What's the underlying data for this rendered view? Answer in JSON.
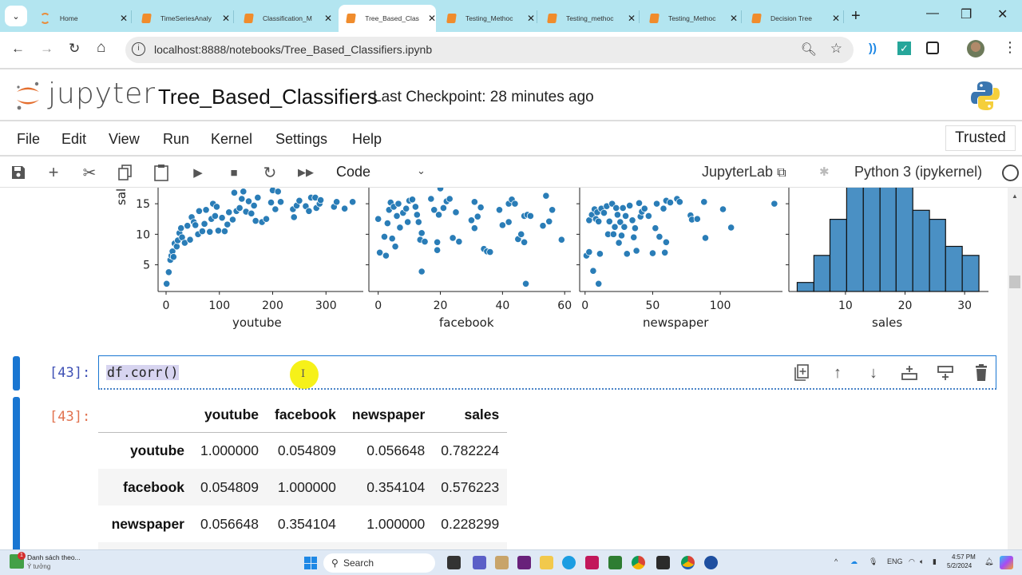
{
  "browser": {
    "tabs": [
      {
        "label": "Home",
        "icon": "jupyter-home-icon",
        "active": false
      },
      {
        "label": "TimeSeriesAnaly",
        "icon": "notebook-icon",
        "active": false
      },
      {
        "label": "Classification_M",
        "icon": "notebook-icon",
        "active": false
      },
      {
        "label": "Tree_Based_Clas",
        "icon": "notebook-icon",
        "active": true
      },
      {
        "label": "Testing_Methoc",
        "icon": "notebook-icon",
        "active": false
      },
      {
        "label": "Testing_methoc",
        "icon": "notebook-icon",
        "active": false
      },
      {
        "label": "Testing_Methoc",
        "icon": "notebook-icon",
        "active": false
      },
      {
        "label": "Decision Tree",
        "icon": "notebook-icon",
        "active": false
      }
    ],
    "tab_close": "✕",
    "new_tab": "+",
    "window": {
      "minimize": "—",
      "restore": "❐",
      "close": "✕"
    },
    "nav": {
      "back": "←",
      "forward": "→",
      "reload": "↻",
      "home": "⌂"
    },
    "url": "localhost:8888/notebooks/Tree_Based_Classifiers.ipynb",
    "url_info_icon": "i",
    "menu": "⋮"
  },
  "jupyter": {
    "wordmark": "jupyter",
    "notebook_title": "Tree_Based_Classifiers",
    "checkpoint": "Last Checkpoint: 28 minutes ago",
    "menus": [
      "File",
      "Edit",
      "View",
      "Run",
      "Kernel",
      "Settings",
      "Help"
    ],
    "trusted": "Trusted",
    "toolbar": {
      "cell_type": "Code",
      "jupyterlab_link": "JupyterLab",
      "kernel": "Python 3 (ipykernel)"
    }
  },
  "chart_data": [
    {
      "type": "scatter",
      "title": "",
      "xlabel": "youtube",
      "ylabel": "sales",
      "xticks": [
        0,
        100,
        200,
        300
      ],
      "yticks": [
        5,
        10,
        15
      ],
      "xlim": [
        -15,
        370
      ],
      "ylim_visible": [
        0.5,
        17.5
      ],
      "points": [
        [
          1,
          1.9
        ],
        [
          5,
          3.8
        ],
        [
          8,
          5.8
        ],
        [
          10,
          6.5
        ],
        [
          12,
          7.2
        ],
        [
          14,
          6.3
        ],
        [
          16,
          8.5
        ],
        [
          20,
          8.0
        ],
        [
          22,
          9.0
        ],
        [
          25,
          10.2
        ],
        [
          28,
          11.0
        ],
        [
          30,
          9.5
        ],
        [
          35,
          8.6
        ],
        [
          40,
          11.4
        ],
        [
          45,
          9.1
        ],
        [
          48,
          12.8
        ],
        [
          52,
          12.0
        ],
        [
          55,
          11.5
        ],
        [
          60,
          10.0
        ],
        [
          62,
          13.8
        ],
        [
          68,
          10.5
        ],
        [
          72,
          11.7
        ],
        [
          75,
          14.0
        ],
        [
          82,
          10.4
        ],
        [
          85,
          12.5
        ],
        [
          88,
          15.0
        ],
        [
          92,
          13.0
        ],
        [
          95,
          14.5
        ],
        [
          98,
          10.6
        ],
        [
          105,
          12.7
        ],
        [
          110,
          10.5
        ],
        [
          115,
          11.6
        ],
        [
          118,
          13.6
        ],
        [
          125,
          12.4
        ],
        [
          128,
          16.8
        ],
        [
          132,
          13.8
        ],
        [
          138,
          14.3
        ],
        [
          142,
          15.8
        ],
        [
          145,
          17.0
        ],
        [
          150,
          13.7
        ],
        [
          155,
          15.4
        ],
        [
          160,
          13.4
        ],
        [
          165,
          14.7
        ],
        [
          168,
          12.2
        ],
        [
          172,
          16.0
        ],
        [
          180,
          12.0
        ],
        [
          188,
          12.5
        ],
        [
          197,
          15.2
        ],
        [
          200,
          17.2
        ],
        [
          205,
          14.1
        ],
        [
          210,
          17.0
        ],
        [
          215,
          15.3
        ],
        [
          238,
          14.1
        ],
        [
          240,
          12.8
        ],
        [
          245,
          14.7
        ],
        [
          250,
          15.5
        ],
        [
          262,
          14.6
        ],
        [
          268,
          13.8
        ],
        [
          272,
          16.0
        ],
        [
          280,
          16.0
        ],
        [
          282,
          14.3
        ],
        [
          288,
          15.0
        ],
        [
          290,
          15.6
        ],
        [
          315,
          14.5
        ],
        [
          320,
          15.3
        ],
        [
          335,
          14.2
        ],
        [
          350,
          15.3
        ]
      ]
    },
    {
      "type": "scatter",
      "xlabel": "facebook",
      "xticks": [
        0,
        20,
        40,
        60
      ],
      "points": [
        [
          0,
          12.5
        ],
        [
          0.5,
          7.0
        ],
        [
          2,
          9.6
        ],
        [
          2.5,
          6.5
        ],
        [
          3,
          11.8
        ],
        [
          3.5,
          14.0
        ],
        [
          4,
          15.2
        ],
        [
          4.5,
          9.3
        ],
        [
          5,
          14.5
        ],
        [
          5.5,
          8.0
        ],
        [
          6,
          13.0
        ],
        [
          6.5,
          15.0
        ],
        [
          7,
          11.1
        ],
        [
          8,
          13.5
        ],
        [
          9,
          14.2
        ],
        [
          9.5,
          12.0
        ],
        [
          10,
          15.5
        ],
        [
          11,
          15.7
        ],
        [
          12,
          14.5
        ],
        [
          12.5,
          13.2
        ],
        [
          13,
          12.0
        ],
        [
          13.5,
          9.1
        ],
        [
          14,
          10.2
        ],
        [
          14,
          3.9
        ],
        [
          15,
          8.8
        ],
        [
          17,
          15.8
        ],
        [
          18,
          14.0
        ],
        [
          19,
          8.7
        ],
        [
          19,
          7.4
        ],
        [
          19.5,
          13.2
        ],
        [
          20,
          17.5
        ],
        [
          21,
          14.3
        ],
        [
          22,
          15.4
        ],
        [
          23,
          15.8
        ],
        [
          24,
          9.4
        ],
        [
          25,
          13.6
        ],
        [
          26,
          8.8
        ],
        [
          30,
          12.3
        ],
        [
          31,
          15.3
        ],
        [
          31,
          11.0
        ],
        [
          32,
          12.9
        ],
        [
          33,
          14.4
        ],
        [
          34,
          7.6
        ],
        [
          35,
          7.2
        ],
        [
          36,
          7.1
        ],
        [
          39,
          14.0
        ],
        [
          40,
          11.5
        ],
        [
          42,
          12.0
        ],
        [
          42,
          15.0
        ],
        [
          43,
          15.7
        ],
        [
          44,
          15.0
        ],
        [
          45,
          9.2
        ],
        [
          46,
          10.0
        ],
        [
          47,
          13.0
        ],
        [
          47,
          8.7
        ],
        [
          47.5,
          1.9
        ],
        [
          48,
          13.2
        ],
        [
          49,
          13.0
        ],
        [
          53,
          11.4
        ],
        [
          54,
          16.3
        ],
        [
          55,
          12.1
        ],
        [
          56,
          14.0
        ],
        [
          59,
          9.1
        ]
      ]
    },
    {
      "type": "scatter",
      "xlabel": "newspaper",
      "xticks": [
        0,
        50,
        100
      ],
      "points": [
        [
          1,
          6.5
        ],
        [
          3,
          7.1
        ],
        [
          3,
          12.3
        ],
        [
          5,
          13.2
        ],
        [
          6,
          4.0
        ],
        [
          7,
          14.1
        ],
        [
          8,
          12.5
        ],
        [
          9,
          13.6
        ],
        [
          10,
          12.1
        ],
        [
          10,
          1.9
        ],
        [
          11,
          6.8
        ],
        [
          12,
          14.2
        ],
        [
          14,
          13.5
        ],
        [
          16,
          14.6
        ],
        [
          17,
          10.0
        ],
        [
          18,
          12.1
        ],
        [
          20,
          15.0
        ],
        [
          21,
          10.0
        ],
        [
          22,
          11.2
        ],
        [
          23,
          14.3
        ],
        [
          24,
          13.2
        ],
        [
          25,
          8.6
        ],
        [
          26,
          12.0
        ],
        [
          27,
          9.8
        ],
        [
          28,
          14.3
        ],
        [
          29,
          11.2
        ],
        [
          30,
          13.0
        ],
        [
          31,
          6.8
        ],
        [
          33,
          14.7
        ],
        [
          35,
          12.3
        ],
        [
          36,
          9.5
        ],
        [
          37,
          11.0
        ],
        [
          38,
          7.3
        ],
        [
          40,
          15.1
        ],
        [
          41,
          12.9
        ],
        [
          42,
          13.7
        ],
        [
          44,
          14.2
        ],
        [
          47,
          13.0
        ],
        [
          50,
          6.9
        ],
        [
          52,
          11.0
        ],
        [
          53,
          15.0
        ],
        [
          55,
          9.6
        ],
        [
          58,
          14.2
        ],
        [
          59,
          7.0
        ],
        [
          60,
          8.7
        ],
        [
          60,
          15.5
        ],
        [
          63,
          15.2
        ],
        [
          68,
          15.8
        ],
        [
          70,
          15.3
        ],
        [
          78,
          13.1
        ],
        [
          79,
          12.4
        ],
        [
          83,
          12.5
        ],
        [
          88,
          15.3
        ],
        [
          89,
          9.4
        ],
        [
          102,
          14.1
        ],
        [
          108,
          11.1
        ],
        [
          140,
          15.0
        ]
      ]
    },
    {
      "type": "bar",
      "subtype": "histogram",
      "xlabel": "sales",
      "xticks": [
        10,
        20,
        30
      ],
      "bin_edges": [
        1.9,
        4.7,
        7.4,
        10.2,
        13.0,
        15.8,
        18.5,
        21.3,
        24.1,
        26.8,
        29.6,
        32.4
      ],
      "counts": [
        1,
        4,
        8,
        17,
        19,
        20,
        17,
        9,
        8,
        5,
        4
      ],
      "note": "top of tallest bins clipped by scroll position"
    }
  ],
  "cells": [
    {
      "prompt_in": "[43]:",
      "source": "df.corr()",
      "tools": [
        "duplicate-icon",
        "move-up-icon",
        "move-down-icon",
        "insert-above-icon",
        "insert-below-icon",
        "delete-icon"
      ],
      "prompt_out": "[43]:",
      "output_table": {
        "columns": [
          "",
          "youtube",
          "facebook",
          "newspaper",
          "sales"
        ],
        "rows": [
          {
            "index": "youtube",
            "values": [
              "1.000000",
              "0.054809",
              "0.056648",
              "0.782224"
            ]
          },
          {
            "index": "facebook",
            "values": [
              "0.054809",
              "1.000000",
              "0.354104",
              "0.576223"
            ]
          },
          {
            "index": "newspaper",
            "values": [
              "0.056648",
              "0.354104",
              "1.000000",
              "0.228299"
            ]
          }
        ]
      }
    }
  ],
  "taskbar": {
    "widget_title": "Danh sách theo...",
    "widget_subtitle": "Ý tưởng",
    "widget_badge": "1",
    "search": "Search",
    "lang": "ENG",
    "time": "4:57 PM",
    "date": "5/2/2024"
  }
}
